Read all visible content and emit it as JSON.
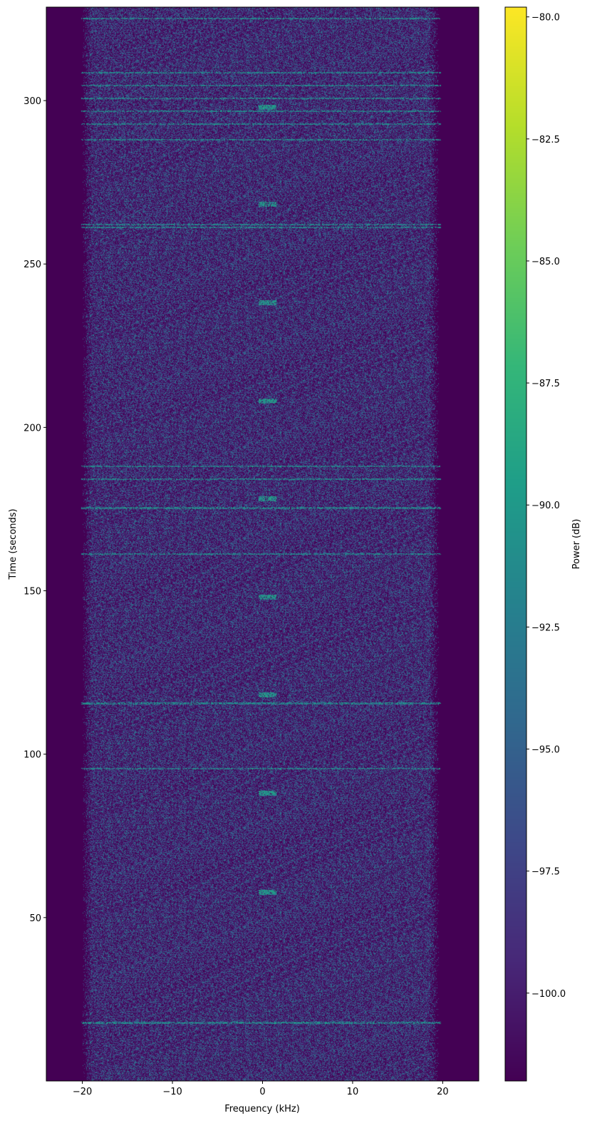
{
  "chart_data": {
    "type": "heatmap",
    "title": "",
    "xlabel": "Frequency (kHz)",
    "ylabel": "Time (seconds)",
    "colorbar_label": "Power (dB)",
    "colormap": "viridis",
    "xlim": [
      -24,
      24
    ],
    "ylim": [
      0,
      328.6
    ],
    "clim": [
      -101.8,
      -79.8
    ],
    "xticks": [
      -20,
      -10,
      0,
      10,
      20
    ],
    "xtick_labels": [
      "−20",
      "−10",
      "0",
      "10",
      "20"
    ],
    "yticks": [
      50,
      100,
      150,
      200,
      250,
      300
    ],
    "ytick_labels": [
      "50",
      "100",
      "150",
      "200",
      "250",
      "300"
    ],
    "cticks": [
      -80,
      -82.5,
      -85,
      -87.5,
      -90,
      -92.5,
      -95,
      -97.5,
      -100
    ],
    "ctick_labels": [
      "−80.0",
      "−82.5",
      "−85.0",
      "−87.5",
      "−90.0",
      "−92.5",
      "−95.0",
      "−97.5",
      "−100.0"
    ],
    "noise_band_khz": [
      -19.5,
      19.0
    ],
    "noise_floor_db": -101.8,
    "broadband_lines_s": [
      325.2,
      308.6,
      304.7,
      300.8,
      296.8,
      292.9,
      288.1,
      262.2,
      261.3,
      188.2,
      184.3,
      175.4,
      161.4,
      115.6,
      95.7,
      17.9
    ],
    "center_bursts_s": [
      298.0,
      268.3,
      238.2,
      208.1,
      178.2,
      148.1,
      118.2,
      88.1,
      57.8
    ],
    "center_burst_khz": [
      -0.5,
      1.5
    ],
    "grid": false
  }
}
